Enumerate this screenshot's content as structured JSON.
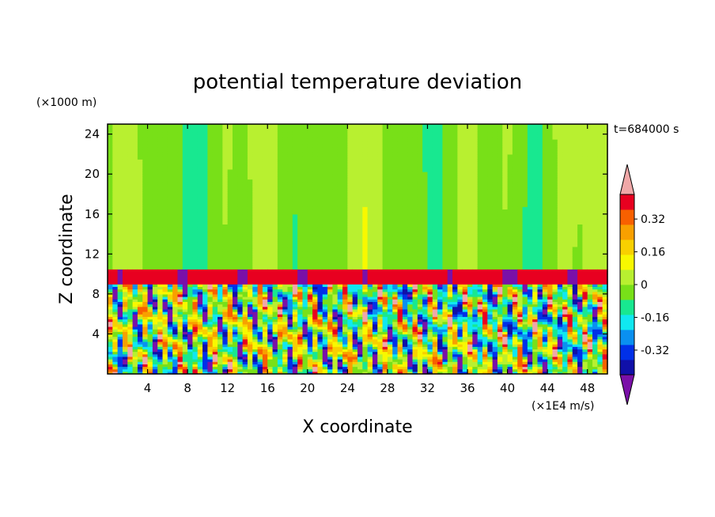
{
  "chart_data": {
    "type": "heatmap",
    "title": "potential temperature deviation",
    "xlabel": "X coordinate",
    "ylabel": "Z coordinate",
    "x_unit": "(×1E4 m/s)",
    "y_unit": "(×1000 m)",
    "time_label": "t=684000 s",
    "xlim": [
      0,
      50
    ],
    "ylim": [
      0,
      25
    ],
    "x_ticks": [
      4,
      8,
      12,
      16,
      20,
      24,
      28,
      32,
      36,
      40,
      44,
      48
    ],
    "y_ticks": [
      4,
      8,
      12,
      16,
      20,
      24
    ],
    "colorbar": {
      "min": -0.44,
      "max": 0.44,
      "step": 0.08,
      "labels": [
        "0.32",
        "0.16",
        "0",
        "-0.16",
        "-0.32"
      ],
      "label_values": [
        0.32,
        0.16,
        0,
        -0.16,
        -0.32
      ],
      "colors": [
        "#7a10a8",
        "#1010a8",
        "#0030e8",
        "#0a90f0",
        "#10e8f0",
        "#18e890",
        "#78e018",
        "#b8f030",
        "#f8f800",
        "#f8d000",
        "#f8a000",
        "#f86000",
        "#e80020",
        "#f0a8a8"
      ]
    },
    "structure": {
      "upper_layer_z": [
        10.6,
        25
      ],
      "upper_layer_value": 0.02,
      "stable_band_z": [
        9,
        10.6
      ],
      "stable_band_value": 0.45,
      "turbulent_layer_z": [
        0,
        9
      ],
      "turbulent_amplitude": 0.45
    }
  }
}
